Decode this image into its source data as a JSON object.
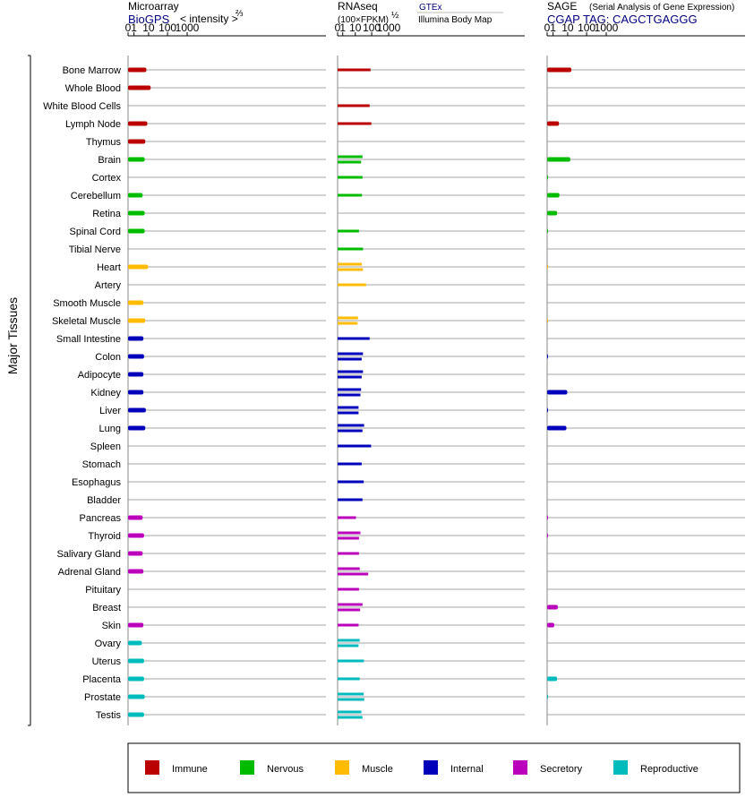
{
  "panels": [
    {
      "id": "microarray",
      "title": "Microarray",
      "subtitle": "BioGPS",
      "note": "< intensity >",
      "note_exp": "⅔",
      "note2": "",
      "ticks": [
        "0",
        "1",
        "10",
        "100",
        "1000"
      ]
    },
    {
      "id": "rnaseq",
      "title": "RNAseq",
      "subtitle": "(100×FPKM)",
      "subtitle_exp": "½",
      "note": "GTEx",
      "note2": "Illumina Body Map",
      "ticks": [
        "0",
        "1",
        "10",
        "100",
        "1000"
      ]
    },
    {
      "id": "sage",
      "title": "SAGE",
      "subtitle": "CGAP TAG: CAGCTGAGGG",
      "note": "(Serial Analysis of Gene Expression)",
      "note2": "",
      "ticks": [
        "0",
        "1",
        "10",
        "100",
        "1000"
      ]
    }
  ],
  "y_axis_label": "Major Tissues",
  "colors": {
    "Immune": "#bb0000",
    "Nervous": "#00bb00",
    "Muscle": "#ffbb00",
    "Internal": "#0000bb",
    "Secretory": "#bb00bb",
    "Reproductive": "#00bbbb"
  },
  "legend": [
    "Immune",
    "Nervous",
    "Muscle",
    "Internal",
    "Secretory",
    "Reproductive"
  ],
  "chart_data": {
    "type": "bar",
    "orientation": "horizontal",
    "x_scale": "log1p",
    "xlim": [
      0,
      1000
    ],
    "categories": [
      "Bone Marrow",
      "Whole Blood",
      "White Blood Cells",
      "Lymph Node",
      "Thymus",
      "Brain",
      "Cortex",
      "Cerebellum",
      "Retina",
      "Spinal Cord",
      "Tibial Nerve",
      "Heart",
      "Artery",
      "Smooth Muscle",
      "Skeletal Muscle",
      "Small Intestine",
      "Colon",
      "Adipocyte",
      "Kidney",
      "Liver",
      "Lung",
      "Spleen",
      "Stomach",
      "Esophagus",
      "Bladder",
      "Pancreas",
      "Thyroid",
      "Salivary Gland",
      "Adrenal Gland",
      "Pituitary",
      "Breast",
      "Skin",
      "Ovary",
      "Uterus",
      "Placenta",
      "Prostate",
      "Testis"
    ],
    "groups": [
      "Immune",
      "Immune",
      "Immune",
      "Immune",
      "Immune",
      "Nervous",
      "Nervous",
      "Nervous",
      "Nervous",
      "Nervous",
      "Nervous",
      "Muscle",
      "Muscle",
      "Muscle",
      "Muscle",
      "Internal",
      "Internal",
      "Internal",
      "Internal",
      "Internal",
      "Internal",
      "Internal",
      "Internal",
      "Internal",
      "Internal",
      "Secretory",
      "Secretory",
      "Secretory",
      "Secretory",
      "Secretory",
      "Secretory",
      "Secretory",
      "Reproductive",
      "Reproductive",
      "Reproductive",
      "Reproductive",
      "Reproductive"
    ],
    "series": [
      {
        "name": "Microarray",
        "values": [
          7.5,
          13,
          null,
          8.5,
          6.5,
          6,
          null,
          4.5,
          6,
          6,
          null,
          9.5,
          null,
          5,
          6.5,
          5,
          5.5,
          5,
          5,
          7,
          6.5,
          null,
          null,
          null,
          null,
          4.5,
          5.5,
          4.5,
          5,
          null,
          null,
          5,
          4,
          5.5,
          5.5,
          6,
          5.5
        ]
      },
      {
        "name": "GTEx",
        "values": [
          85,
          null,
          75,
          95,
          null,
          28,
          28,
          26,
          null,
          17,
          30,
          26,
          46,
          null,
          15,
          75,
          30,
          30,
          23,
          16,
          35,
          92,
          25,
          33,
          28,
          11,
          21,
          17,
          19,
          17,
          28,
          16,
          19,
          34,
          19,
          33,
          24
        ]
      },
      {
        "name": "Illumina Body Map",
        "values": [
          null,
          null,
          null,
          null,
          null,
          23,
          null,
          null,
          null,
          null,
          null,
          30,
          null,
          null,
          14,
          null,
          25,
          25,
          21,
          16,
          28,
          null,
          null,
          null,
          null,
          null,
          17,
          null,
          62,
          null,
          20,
          null,
          16,
          null,
          null,
          36,
          28
        ]
      },
      {
        "name": "SAGE",
        "values": [
          16,
          null,
          null,
          3,
          null,
          14,
          0.05,
          3.2,
          2.2,
          0.05,
          null,
          0.02,
          null,
          null,
          0.02,
          null,
          0.1,
          null,
          9.5,
          0.1,
          8.5,
          null,
          null,
          null,
          null,
          0.1,
          0.1,
          null,
          null,
          null,
          2.5,
          1.3,
          null,
          null,
          2.2,
          0.05,
          null
        ]
      }
    ]
  }
}
